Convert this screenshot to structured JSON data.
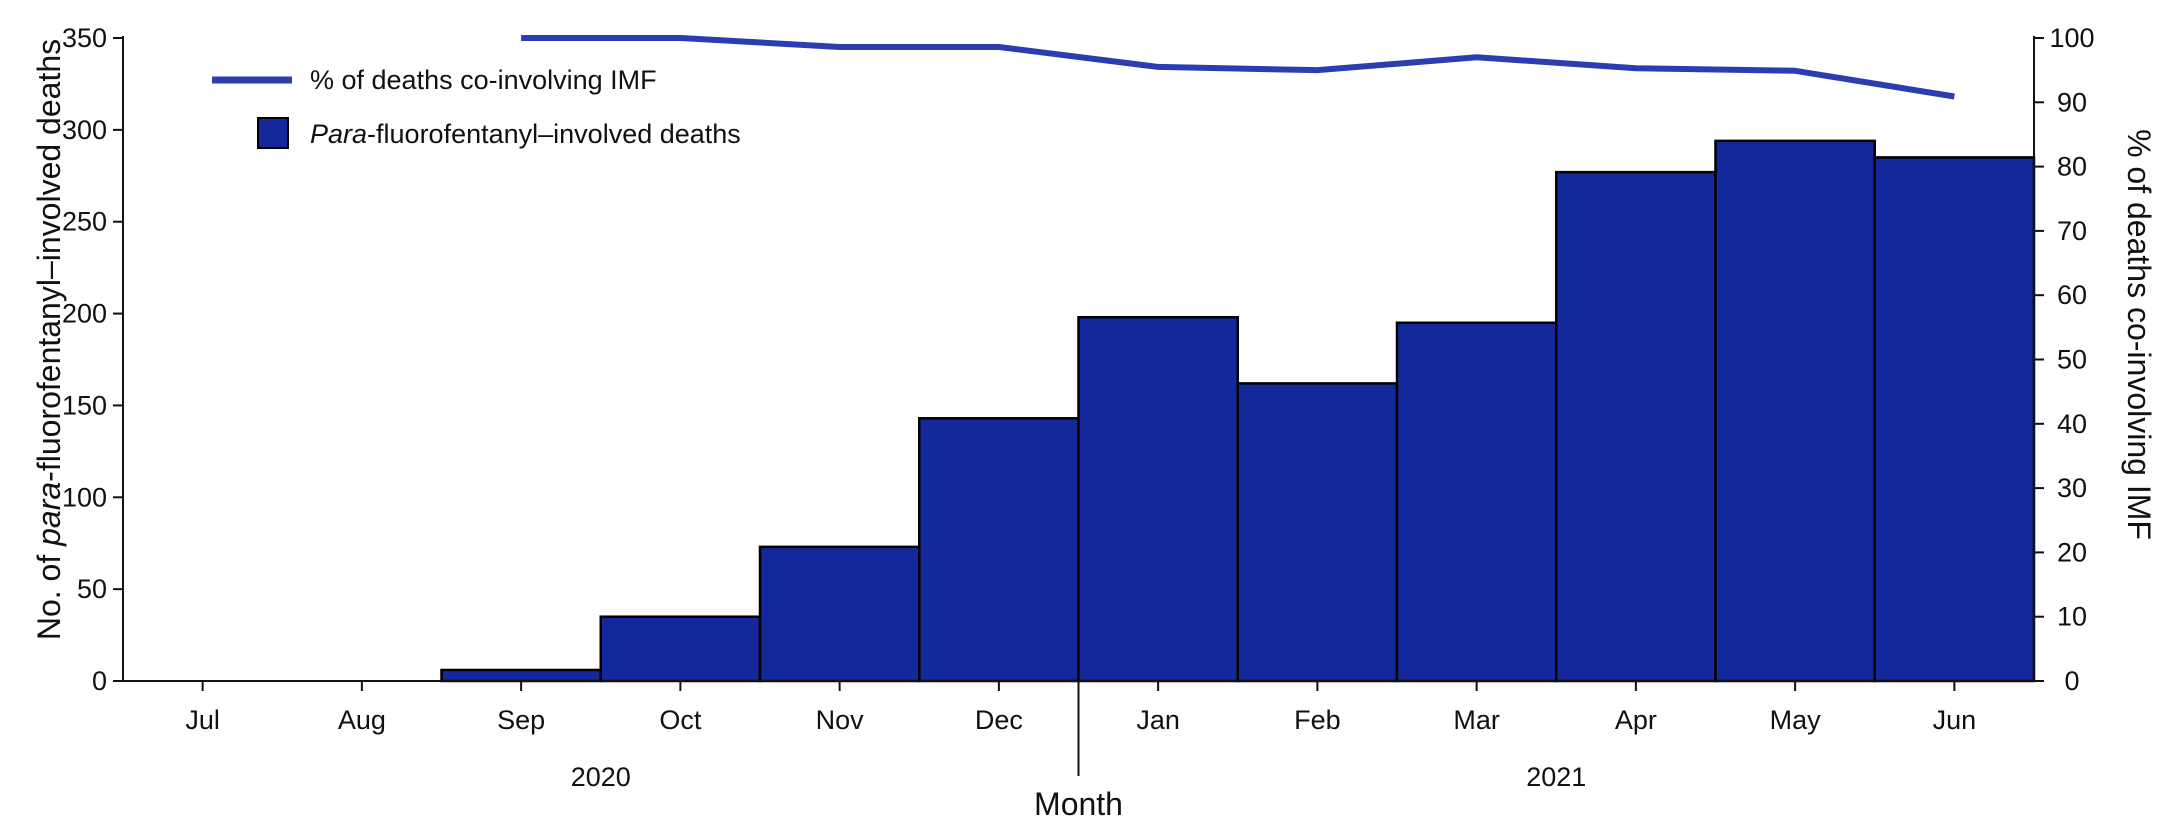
{
  "chart_data": {
    "type": "bar",
    "categories": [
      "Jul",
      "Aug",
      "Sep",
      "Oct",
      "Nov",
      "Dec",
      "Jan",
      "Feb",
      "Mar",
      "Apr",
      "May",
      "Jun"
    ],
    "year_groups": [
      {
        "label": "2020",
        "from": "Jul",
        "to": "Dec"
      },
      {
        "label": "2021",
        "from": "Jan",
        "to": "Jun"
      }
    ],
    "series": [
      {
        "name_prefix": "Para",
        "name_rest": "-fluorofentanyl–involved deaths",
        "kind": "bar",
        "axis": "left",
        "values": [
          0,
          0,
          6,
          35,
          73,
          143,
          198,
          162,
          195,
          277,
          294,
          285
        ]
      },
      {
        "name": "% of deaths co-involving IMF",
        "kind": "line",
        "axis": "right",
        "values": [
          null,
          null,
          100,
          100,
          98.6,
          98.6,
          95.5,
          95.0,
          97.0,
          95.3,
          94.9,
          90.9
        ]
      }
    ],
    "xlabel": "Month",
    "ylabel_left_prefix": "No. of ",
    "ylabel_left_italic": "para",
    "ylabel_left_suffix": "-fluorofentanyl–involved deaths",
    "ylabel_right": "% of deaths co-involving IMF",
    "ylim_left": [
      0,
      350
    ],
    "yticks_left": [
      0,
      50,
      100,
      150,
      200,
      250,
      300,
      350
    ],
    "ylim_right": [
      0,
      100
    ],
    "yticks_right": [
      0,
      10,
      20,
      30,
      40,
      50,
      60,
      70,
      80,
      90,
      100
    ],
    "legend_position": "top-left",
    "grid": false,
    "colors": {
      "bar_fill": "#13299B",
      "bar_edge": "#000000",
      "line": "#2B3EB0",
      "axis": "#111111"
    }
  }
}
